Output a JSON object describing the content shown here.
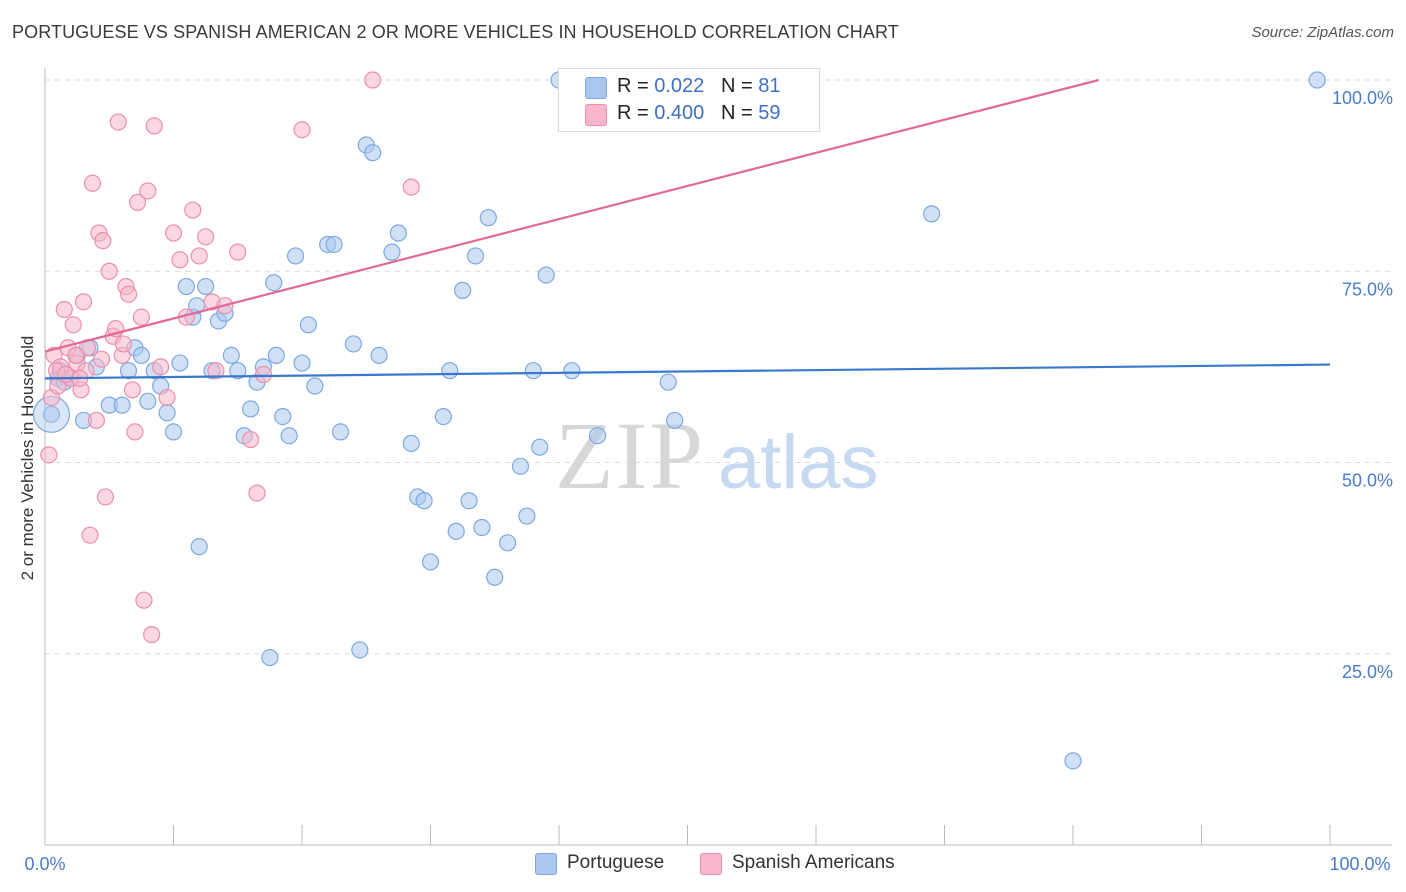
{
  "title": "PORTUGUESE VS SPANISH AMERICAN 2 OR MORE VEHICLES IN HOUSEHOLD CORRELATION CHART",
  "source": "Source: ZipAtlas.com",
  "watermark": {
    "zip": "ZIP",
    "atlas": "atlas"
  },
  "legend": {
    "rows": [
      {
        "r_label": "R =",
        "r_value": "0.022",
        "n_label": "N =",
        "n_value": "81",
        "color": "#aac8ee"
      },
      {
        "r_label": "R =",
        "r_value": "0.400",
        "n_label": "N =",
        "n_value": "59",
        "color": "#f7b6c9"
      }
    ]
  },
  "bottom_legend": [
    {
      "label": "Portuguese",
      "color": "#aac8ee"
    },
    {
      "label": "Spanish Americans",
      "color": "#f7b6c9"
    }
  ],
  "chart_data": {
    "type": "scatter",
    "title": "PORTUGUESE VS SPANISH AMERICAN 2 OR MORE VEHICLES IN HOUSEHOLD CORRELATION CHART",
    "xlabel": "",
    "ylabel": "2 or more Vehicles in Household",
    "xlim": [
      0,
      100
    ],
    "ylim": [
      0,
      100
    ],
    "x_tick_labels": [
      "0.0%",
      "100.0%"
    ],
    "y_tick_labels": [
      "25.0%",
      "50.0%",
      "75.0%",
      "100.0%"
    ],
    "y_ticks": [
      25,
      50,
      75,
      100
    ],
    "grid": true,
    "series": [
      {
        "name": "Portuguese",
        "color": "#aac8ee",
        "stroke": "#7ea8e0",
        "line_color": "#3a78d0",
        "trend": [
          [
            0,
            61.0
          ],
          [
            100,
            62.8
          ]
        ],
        "points": [
          [
            0.5,
            56.3
          ],
          [
            1.0,
            61.0
          ],
          [
            1.5,
            60.5
          ],
          [
            2.5,
            64.0
          ],
          [
            3.0,
            55.5
          ],
          [
            3.5,
            65.0
          ],
          [
            4.0,
            62.5
          ],
          [
            5.0,
            57.5
          ],
          [
            6.0,
            57.5
          ],
          [
            6.5,
            62.0
          ],
          [
            7.0,
            65.0
          ],
          [
            7.5,
            64.0
          ],
          [
            8.0,
            58.0
          ],
          [
            8.5,
            62.0
          ],
          [
            9.0,
            60.0
          ],
          [
            9.5,
            56.5
          ],
          [
            10.0,
            54.0
          ],
          [
            10.5,
            63.0
          ],
          [
            11.0,
            73.0
          ],
          [
            11.5,
            69.0
          ],
          [
            11.8,
            70.5
          ],
          [
            12.0,
            39.0
          ],
          [
            12.5,
            73.0
          ],
          [
            13.0,
            62.0
          ],
          [
            13.5,
            68.5
          ],
          [
            14.0,
            69.5
          ],
          [
            14.5,
            64.0
          ],
          [
            15.0,
            62.0
          ],
          [
            15.5,
            53.5
          ],
          [
            16.0,
            57.0
          ],
          [
            16.5,
            60.5
          ],
          [
            17.0,
            62.5
          ],
          [
            17.5,
            24.5
          ],
          [
            17.8,
            73.5
          ],
          [
            18.0,
            64.0
          ],
          [
            18.5,
            56.0
          ],
          [
            19.0,
            53.5
          ],
          [
            19.5,
            77.0
          ],
          [
            20.0,
            63.0
          ],
          [
            20.5,
            68.0
          ],
          [
            21.0,
            60.0
          ],
          [
            22.0,
            78.5
          ],
          [
            22.5,
            78.5
          ],
          [
            23.0,
            54.0
          ],
          [
            24.0,
            65.5
          ],
          [
            24.5,
            25.5
          ],
          [
            25.0,
            91.5
          ],
          [
            25.5,
            90.5
          ],
          [
            26.0,
            64.0
          ],
          [
            27.0,
            77.5
          ],
          [
            27.5,
            80.0
          ],
          [
            28.5,
            52.5
          ],
          [
            29.0,
            45.5
          ],
          [
            29.5,
            45.0
          ],
          [
            30.0,
            37.0
          ],
          [
            31.0,
            56.0
          ],
          [
            31.5,
            62.0
          ],
          [
            32.0,
            41.0
          ],
          [
            32.5,
            72.5
          ],
          [
            33.0,
            45.0
          ],
          [
            33.5,
            77.0
          ],
          [
            34.0,
            41.5
          ],
          [
            34.5,
            82.0
          ],
          [
            35.0,
            35.0
          ],
          [
            36.0,
            39.5
          ],
          [
            37.0,
            49.5
          ],
          [
            37.5,
            43.0
          ],
          [
            38.0,
            62.0
          ],
          [
            38.5,
            52.0
          ],
          [
            39.0,
            74.5
          ],
          [
            40.0,
            100.0
          ],
          [
            41.0,
            62.0
          ],
          [
            43.0,
            53.5
          ],
          [
            48.5,
            60.5
          ],
          [
            49.0,
            55.5
          ],
          [
            69.0,
            82.5
          ],
          [
            80.0,
            11.0
          ],
          [
            99.0,
            100.0
          ],
          [
            45.0,
            100.0
          ],
          [
            1.2,
            62.0
          ],
          [
            2.0,
            61.0
          ]
        ]
      },
      {
        "name": "Spanish Americans",
        "color": "#f7b6c9",
        "stroke": "#ec8fae",
        "line_color": "#e06a93",
        "trend": [
          [
            0,
            64.5
          ],
          [
            82,
            100
          ]
        ],
        "points": [
          [
            0.3,
            51.0
          ],
          [
            0.5,
            58.5
          ],
          [
            0.7,
            64.0
          ],
          [
            1.0,
            60.0
          ],
          [
            1.2,
            62.5
          ],
          [
            1.5,
            70.0
          ],
          [
            1.8,
            65.0
          ],
          [
            2.0,
            61.0
          ],
          [
            2.2,
            68.0
          ],
          [
            2.5,
            63.0
          ],
          [
            2.8,
            59.5
          ],
          [
            3.0,
            71.0
          ],
          [
            3.2,
            62.0
          ],
          [
            3.5,
            40.5
          ],
          [
            3.7,
            86.5
          ],
          [
            4.0,
            55.5
          ],
          [
            4.2,
            80.0
          ],
          [
            4.5,
            79.0
          ],
          [
            4.7,
            45.5
          ],
          [
            5.0,
            75.0
          ],
          [
            5.3,
            66.5
          ],
          [
            5.5,
            67.5
          ],
          [
            5.7,
            94.5
          ],
          [
            6.0,
            64.0
          ],
          [
            6.3,
            73.0
          ],
          [
            6.5,
            72.0
          ],
          [
            6.8,
            59.5
          ],
          [
            7.0,
            54.0
          ],
          [
            7.2,
            84.0
          ],
          [
            7.5,
            69.0
          ],
          [
            7.7,
            32.0
          ],
          [
            8.0,
            85.5
          ],
          [
            8.3,
            27.5
          ],
          [
            8.5,
            94.0
          ],
          [
            9.0,
            62.5
          ],
          [
            9.5,
            58.5
          ],
          [
            10.0,
            80.0
          ],
          [
            10.5,
            76.5
          ],
          [
            11.0,
            69.0
          ],
          [
            11.5,
            83.0
          ],
          [
            12.0,
            77.0
          ],
          [
            12.5,
            79.5
          ],
          [
            13.0,
            71.0
          ],
          [
            14.0,
            70.5
          ],
          [
            15.0,
            77.5
          ],
          [
            16.0,
            53.0
          ],
          [
            16.5,
            46.0
          ],
          [
            17.0,
            61.5
          ],
          [
            20.0,
            93.5
          ],
          [
            25.5,
            100.0
          ],
          [
            28.5,
            86.0
          ],
          [
            3.3,
            65.0
          ],
          [
            2.4,
            64.0
          ],
          [
            6.1,
            65.5
          ],
          [
            0.9,
            62.0
          ],
          [
            1.6,
            61.5
          ],
          [
            2.7,
            61.0
          ],
          [
            4.4,
            63.5
          ],
          [
            13.3,
            62.0
          ]
        ]
      }
    ]
  }
}
